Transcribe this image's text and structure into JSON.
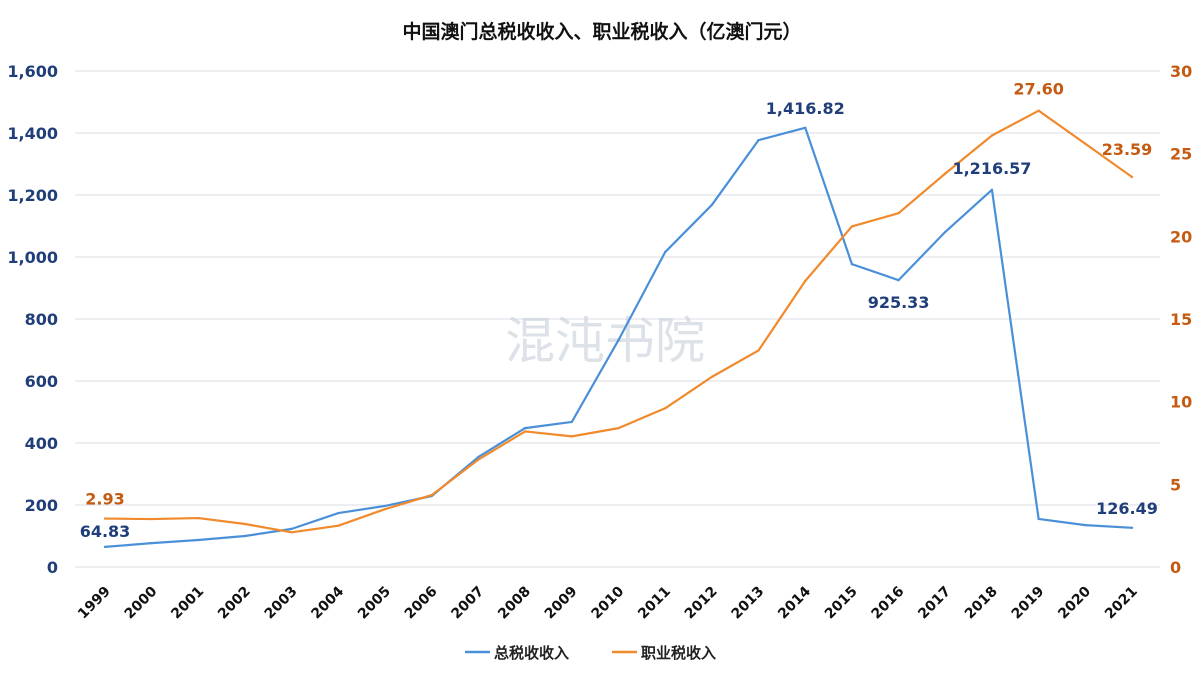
{
  "chart_data": {
    "type": "line",
    "title": "中国澳门总税收收入、职业税收入（亿澳门元）",
    "watermark": "混沌书院",
    "categories": [
      "1999",
      "2000",
      "2001",
      "2002",
      "2003",
      "2004",
      "2005",
      "2006",
      "2007",
      "2008",
      "2009",
      "2010",
      "2011",
      "2012",
      "2013",
      "2014",
      "2015",
      "2016",
      "2017",
      "2018",
      "2019",
      "2020",
      "2021"
    ],
    "left_axis": {
      "range": [
        0,
        1600
      ],
      "ticks": [
        "0",
        "200",
        "400",
        "600",
        "800",
        "1,000",
        "1,200",
        "1,400",
        "1,600"
      ],
      "tick_values": [
        0,
        200,
        400,
        600,
        800,
        1000,
        1200,
        1400,
        1600
      ]
    },
    "right_axis": {
      "range": [
        0,
        30
      ],
      "ticks": [
        "0",
        "5",
        "10",
        "15",
        "20",
        "25",
        "30"
      ],
      "tick_values": [
        0,
        5,
        10,
        15,
        20,
        25,
        30
      ]
    },
    "grid": true,
    "legend_position": "bottom",
    "series": [
      {
        "name": "总税收收入",
        "axis": "left",
        "color": "#4a90d9",
        "values": [
          64.83,
          77,
          87,
          100,
          123,
          174,
          197,
          229,
          355,
          448,
          468,
          732,
          1016,
          1168,
          1377,
          1416.82,
          977,
          925.33,
          1081,
          1216.57,
          155,
          135,
          126.49
        ],
        "labels": [
          {
            "index": 0,
            "text": "64.83"
          },
          {
            "index": 15,
            "text": "1,416.82"
          },
          {
            "index": 17,
            "text": "925.33"
          },
          {
            "index": 19,
            "text": "1,216.57"
          },
          {
            "index": 22,
            "text": "126.49"
          }
        ]
      },
      {
        "name": "职业税收入",
        "axis": "right",
        "color": "#f08a2c",
        "values": [
          2.93,
          2.9,
          2.96,
          2.6,
          2.1,
          2.5,
          3.5,
          4.35,
          6.5,
          8.2,
          7.9,
          8.4,
          9.6,
          11.5,
          13.1,
          17.3,
          20.6,
          21.4,
          23.8,
          26.1,
          27.6,
          25.6,
          23.59
        ],
        "labels": [
          {
            "index": 0,
            "text": "2.93"
          },
          {
            "index": 20,
            "text": "27.60"
          },
          {
            "index": 22,
            "text": "23.59"
          }
        ]
      }
    ]
  }
}
